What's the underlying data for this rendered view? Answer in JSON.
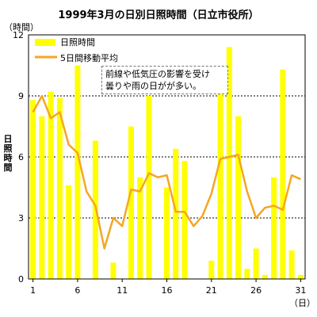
{
  "chart_data": {
    "type": "bar",
    "title": "1999年3月の日別日照時間（日立市役所）",
    "ylabel": "日照時間",
    "yunit": "（時間）",
    "xunit": "（日）",
    "ylim": [
      0,
      12
    ],
    "yticks": [
      0,
      3,
      6,
      9,
      12
    ],
    "xticks": [
      1,
      6,
      11,
      16,
      21,
      26,
      31
    ],
    "grid": "dashed-horizontal",
    "legend_placement": "top-left",
    "annotation": {
      "line1": "前線や低気圧の影響を受け",
      "line2": "曇りや雨の日がが多い。"
    },
    "x": [
      1,
      2,
      3,
      4,
      5,
      6,
      7,
      8,
      9,
      10,
      11,
      12,
      13,
      14,
      15,
      16,
      17,
      18,
      19,
      20,
      21,
      22,
      23,
      24,
      25,
      26,
      27,
      28,
      29,
      30,
      31
    ],
    "series": [
      {
        "name": "日照時間",
        "type": "bar",
        "color": "#ffff00",
        "values": [
          8.8,
          8.0,
          9.2,
          8.9,
          4.6,
          10.5,
          0.0,
          6.8,
          0.0,
          0.8,
          0.0,
          7.5,
          5.0,
          9.0,
          0.0,
          4.5,
          6.4,
          5.8,
          0.0,
          0.0,
          0.9,
          9.1,
          11.4,
          8.0,
          0.5,
          1.5,
          0.2,
          5.0,
          10.3,
          1.4,
          0.2
        ]
      },
      {
        "name": "5日間移動平均",
        "type": "line",
        "color": "#f5a623",
        "values": [
          8.2,
          9.0,
          7.9,
          8.2,
          6.6,
          6.2,
          4.3,
          3.6,
          1.5,
          3.0,
          2.6,
          4.4,
          4.3,
          5.2,
          5.0,
          5.1,
          3.3,
          3.3,
          2.6,
          3.1,
          4.2,
          5.9,
          6.0,
          6.1,
          4.3,
          3.0,
          3.5,
          3.6,
          3.4,
          5.1,
          4.9
        ]
      }
    ]
  }
}
